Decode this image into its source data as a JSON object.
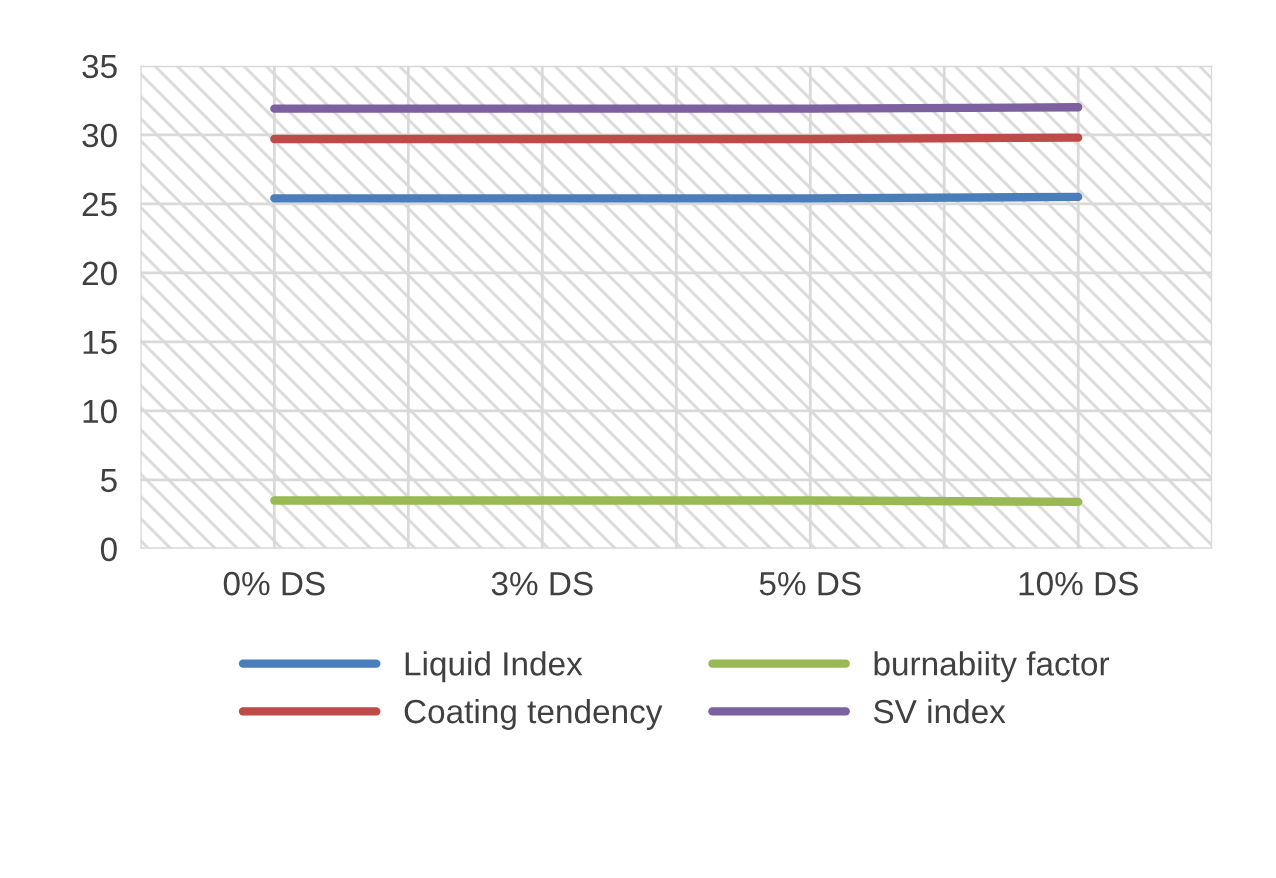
{
  "chart_data": {
    "type": "line",
    "categories": [
      "0% DS",
      "3% DS",
      "5% DS",
      "10% DS"
    ],
    "series": [
      {
        "name": "Liquid Index",
        "color": "#4a7ebb",
        "values": [
          25.4,
          25.4,
          25.4,
          25.5
        ]
      },
      {
        "name": "Coating tendency",
        "color": "#be4b48",
        "values": [
          29.7,
          29.7,
          29.7,
          29.8
        ]
      },
      {
        "name": "burnabiity factor",
        "color": "#98b954",
        "values": [
          3.5,
          3.5,
          3.5,
          3.4
        ]
      },
      {
        "name": "SV index",
        "color": "#7d60a0",
        "values": [
          31.9,
          31.9,
          31.9,
          32.0
        ]
      }
    ],
    "ylim": [
      0,
      35
    ],
    "yticks": [
      0,
      5,
      10,
      15,
      20,
      25,
      30,
      35
    ],
    "grid": true,
    "legend": "bottom",
    "marker": "none",
    "line_style": "solid"
  }
}
